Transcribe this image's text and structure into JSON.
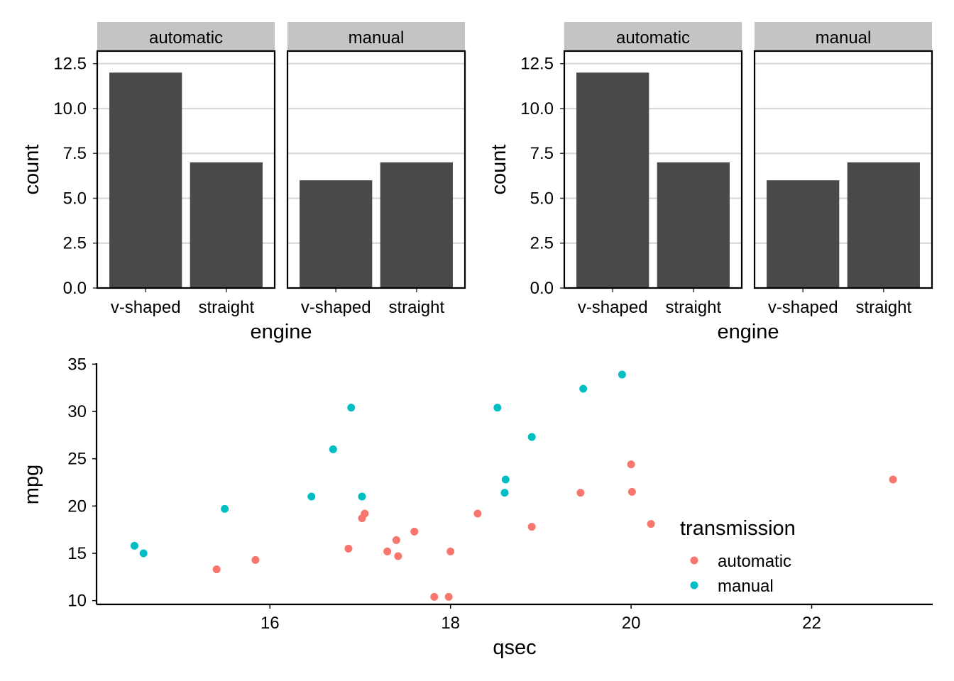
{
  "chart_data": [
    {
      "type": "bar",
      "panel": "top-left",
      "facets": [
        "automatic",
        "manual"
      ],
      "categories": [
        "v-shaped",
        "straight"
      ],
      "values": {
        "automatic": [
          12,
          7
        ],
        "manual": [
          6,
          7
        ]
      },
      "xlabel": "engine",
      "ylabel": "count",
      "ylim": [
        0,
        13.2
      ],
      "yticks": [
        0,
        2.5,
        5,
        7.5,
        10,
        12.5
      ],
      "ytick_labels": [
        "0.0",
        "2.5",
        "5.0",
        "7.5",
        "10.0",
        "12.5"
      ],
      "bar_color": "#494949",
      "strip_color": "#c4c4c4",
      "grid": "horizontal"
    },
    {
      "type": "bar",
      "panel": "top-right",
      "facets": [
        "automatic",
        "manual"
      ],
      "categories": [
        "v-shaped",
        "straight"
      ],
      "values": {
        "automatic": [
          12,
          7
        ],
        "manual": [
          6,
          7
        ]
      },
      "xlabel": "engine",
      "ylabel": "count",
      "ylim": [
        0,
        13.2
      ],
      "yticks": [
        0,
        2.5,
        5,
        7.5,
        10,
        12.5
      ],
      "ytick_labels": [
        "0.0",
        "2.5",
        "5.0",
        "7.5",
        "10.0",
        "12.5"
      ],
      "bar_color": "#494949",
      "strip_color": "#c4c4c4",
      "grid": "horizontal"
    },
    {
      "type": "scatter",
      "panel": "bottom",
      "xlabel": "qsec",
      "ylabel": "mpg",
      "xlim": [
        14.08,
        23.34
      ],
      "ylim": [
        9.6,
        35.1
      ],
      "xticks": [
        16,
        18,
        20,
        22
      ],
      "yticks": [
        10,
        15,
        20,
        25,
        30,
        35
      ],
      "grid": false,
      "legend": {
        "title": "transmission",
        "position": "right"
      },
      "series": [
        {
          "name": "automatic",
          "color": "#f8766d",
          "x": [
            19.44,
            17.02,
            20.22,
            15.84,
            20.0,
            22.9,
            18.3,
            18.9,
            17.4,
            17.6,
            18.0,
            17.98,
            17.82,
            17.42,
            20.01,
            16.87,
            17.3,
            15.41,
            17.05
          ],
          "y": [
            21.4,
            18.7,
            18.1,
            14.3,
            24.4,
            22.8,
            19.2,
            17.8,
            16.4,
            17.3,
            15.2,
            10.4,
            10.4,
            14.7,
            21.5,
            15.5,
            15.2,
            13.3,
            19.2
          ]
        },
        {
          "name": "manual",
          "color": "#00bfc4",
          "x": [
            16.46,
            17.02,
            18.61,
            19.47,
            18.52,
            19.9,
            18.9,
            16.7,
            16.9,
            14.5,
            15.5,
            14.6,
            18.6
          ],
          "y": [
            21.0,
            21.0,
            22.8,
            32.4,
            30.4,
            33.9,
            27.3,
            26.0,
            30.4,
            15.8,
            19.7,
            15.0,
            21.4
          ]
        }
      ]
    }
  ]
}
